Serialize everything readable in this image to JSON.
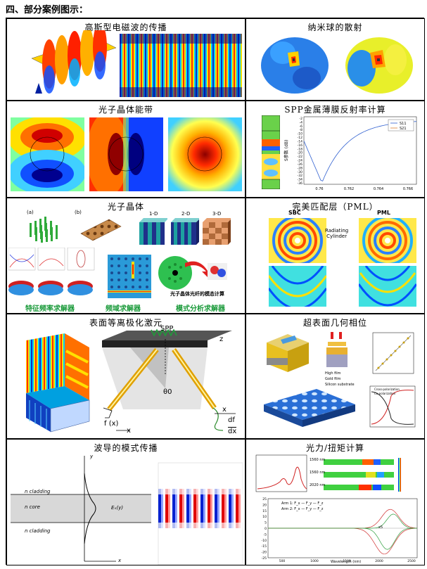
{
  "heading": "四、部分案例图示：",
  "cells": {
    "gaussian": {
      "title": "高斯型电磁波的传播"
    },
    "nanosphere": {
      "title": "纳米球的散射"
    },
    "bands": {
      "title": "光子晶体能带"
    },
    "spp_reflect": {
      "title": "SPP金属薄膜反射率计算",
      "legend": [
        "S11",
        "S21"
      ],
      "x_ticks": [
        "0.76",
        "0.762",
        "0.764",
        "0.766"
      ],
      "y_ticks": [
        "-2",
        "-4",
        "-6",
        "-8",
        "-10",
        "-12",
        "-14",
        "-16",
        "-18",
        "-20",
        "-22",
        "-24",
        "-26",
        "-28",
        "-30",
        "-32",
        "-34",
        "-36"
      ],
      "ylabel": "S参数 (dB)"
    },
    "crystal": {
      "title": "光子晶体",
      "dims": [
        "1-D",
        "2-D",
        "3-D"
      ],
      "panel_a": "(a)",
      "panel_b": "(b)",
      "fiber_caption": "光子晶体光纤的模态计算",
      "solvers": [
        "特征频率求解器",
        "频域求解器",
        "模式分析求解器"
      ]
    },
    "pml": {
      "title": "完美匹配层（PML）",
      "sbc": "SBC",
      "pml": "PML",
      "radiating": "Radiating\nCylinder"
    },
    "plasmon": {
      "title": "表面等离极化激元",
      "spp": "SPP",
      "theta": "θ0",
      "fx": "f (x)",
      "x1": "x",
      "x2": "x",
      "z": "z",
      "df": "df",
      "dx": "dx"
    },
    "metasurface": {
      "title": "超表面几何相位",
      "legend": [
        "High film",
        "Gold film",
        "Silicon substrate"
      ],
      "curves": [
        "Cross-polarization",
        "Co-polarization"
      ]
    },
    "waveguide": {
      "title": "波导的模式传播",
      "cladding_top": "n cladding",
      "core": "n core",
      "cladding_bot": "n cladding",
      "field": "Eₓ(y)",
      "yaxis": "y",
      "xaxis": "x"
    },
    "optforce": {
      "title": "光力/扭矩计算",
      "wavelengths": [
        "1560 nm",
        "1560 nm",
        "2020 nm"
      ],
      "arm_labels": [
        "Arm 1",
        "Arm 2"
      ],
      "legend1": "Arm 1: F_x  —  F_y  —  F_z",
      "legend2": "Arm 2: F_x  —  F_y  —  F_z",
      "xlabel": "Wavelength (nm)",
      "x_ticks": [
        "500",
        "1000",
        "1500",
        "2000",
        "2500"
      ],
      "y_ticks": [
        "25",
        "20",
        "15",
        "10",
        "5",
        "0",
        "-5",
        "-10",
        "-15",
        "-20",
        "-25"
      ],
      "anno": "x5"
    }
  }
}
